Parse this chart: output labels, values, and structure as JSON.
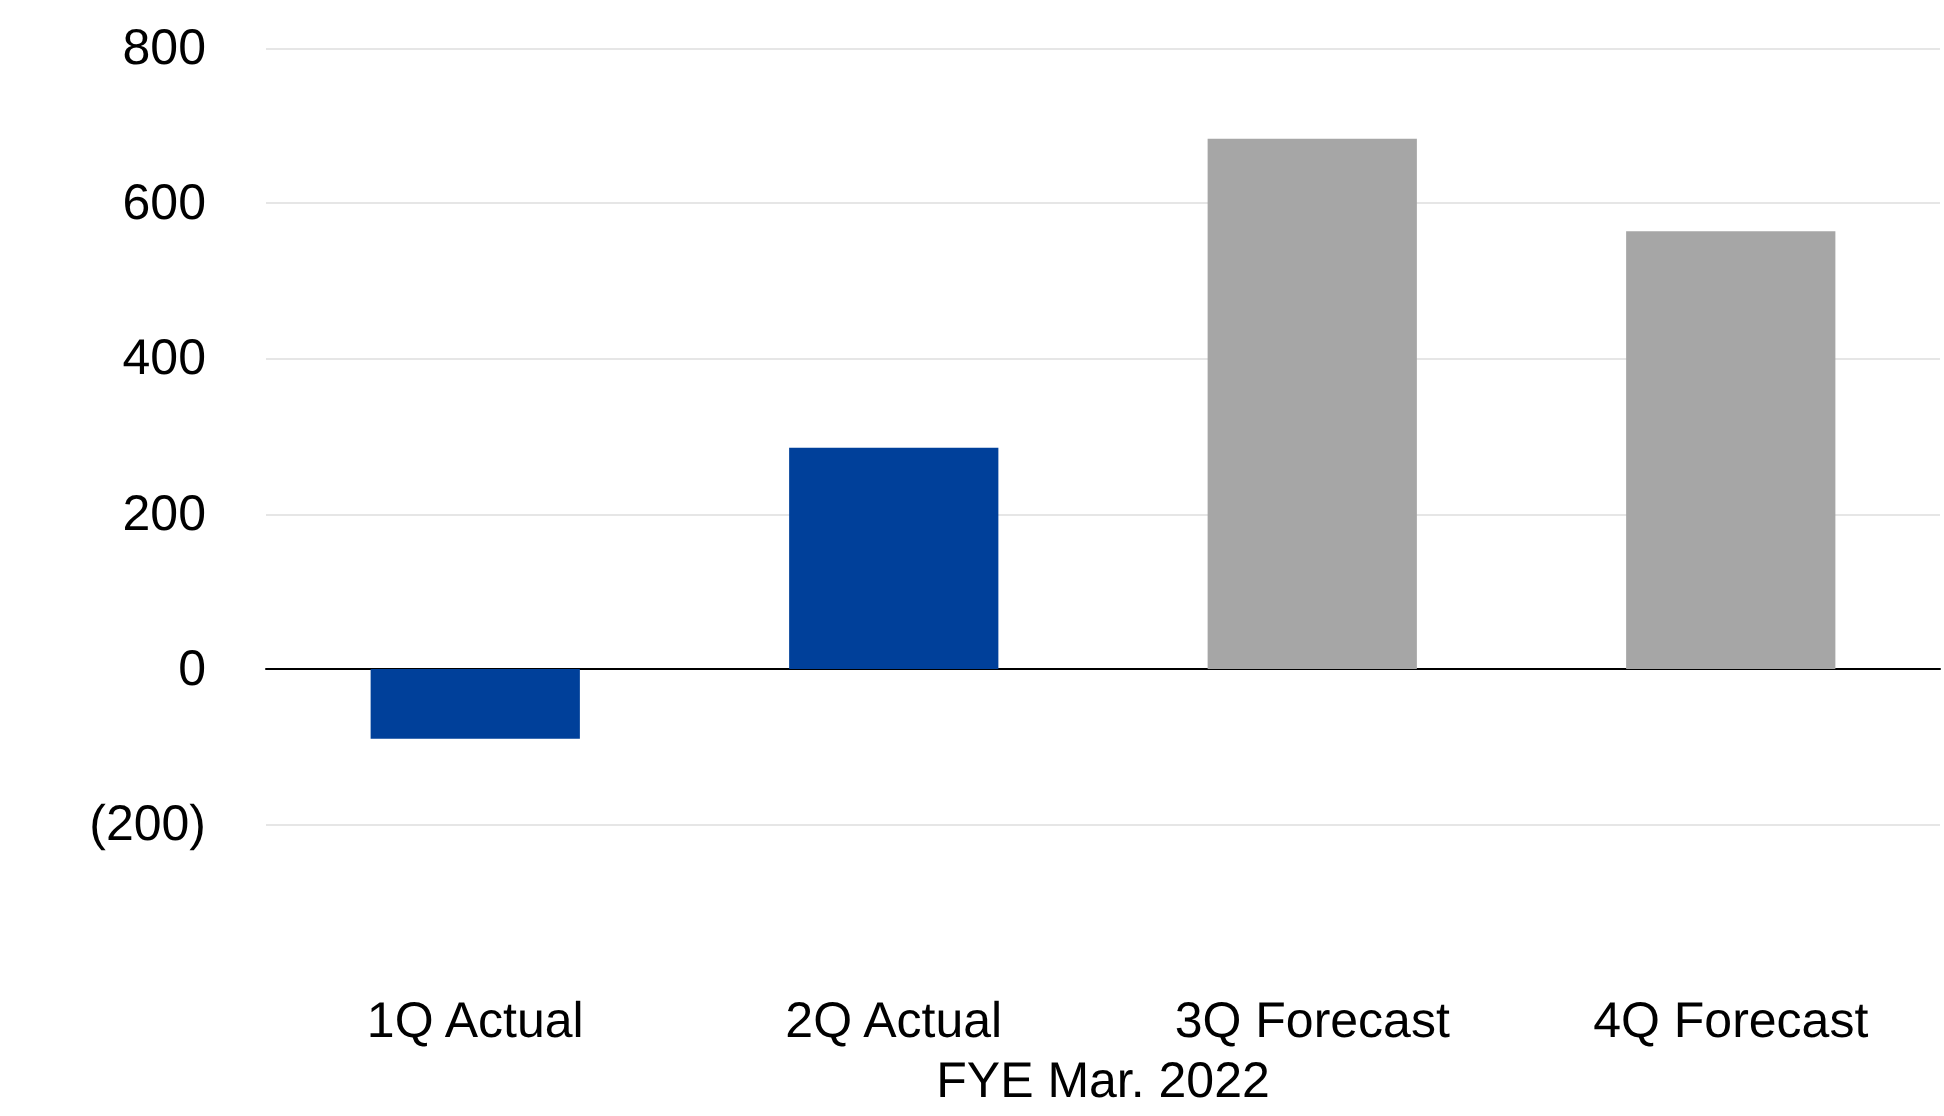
{
  "chart_data": {
    "type": "bar",
    "xlabel": "FYE Mar. 2022",
    "categories": [
      "1Q Actual",
      "2Q Actual",
      "3Q Forecast",
      "4Q Forecast"
    ],
    "values": [
      -90,
      285,
      683,
      564
    ],
    "colors": [
      "#00409a",
      "#00409a",
      "#a6a6a6",
      "#a6a6a6"
    ],
    "ylim": [
      -200,
      800
    ],
    "yticks": [
      {
        "value": -200,
        "label": "(200)"
      },
      0,
      200,
      400,
      600,
      800
    ],
    "grid": "y"
  }
}
